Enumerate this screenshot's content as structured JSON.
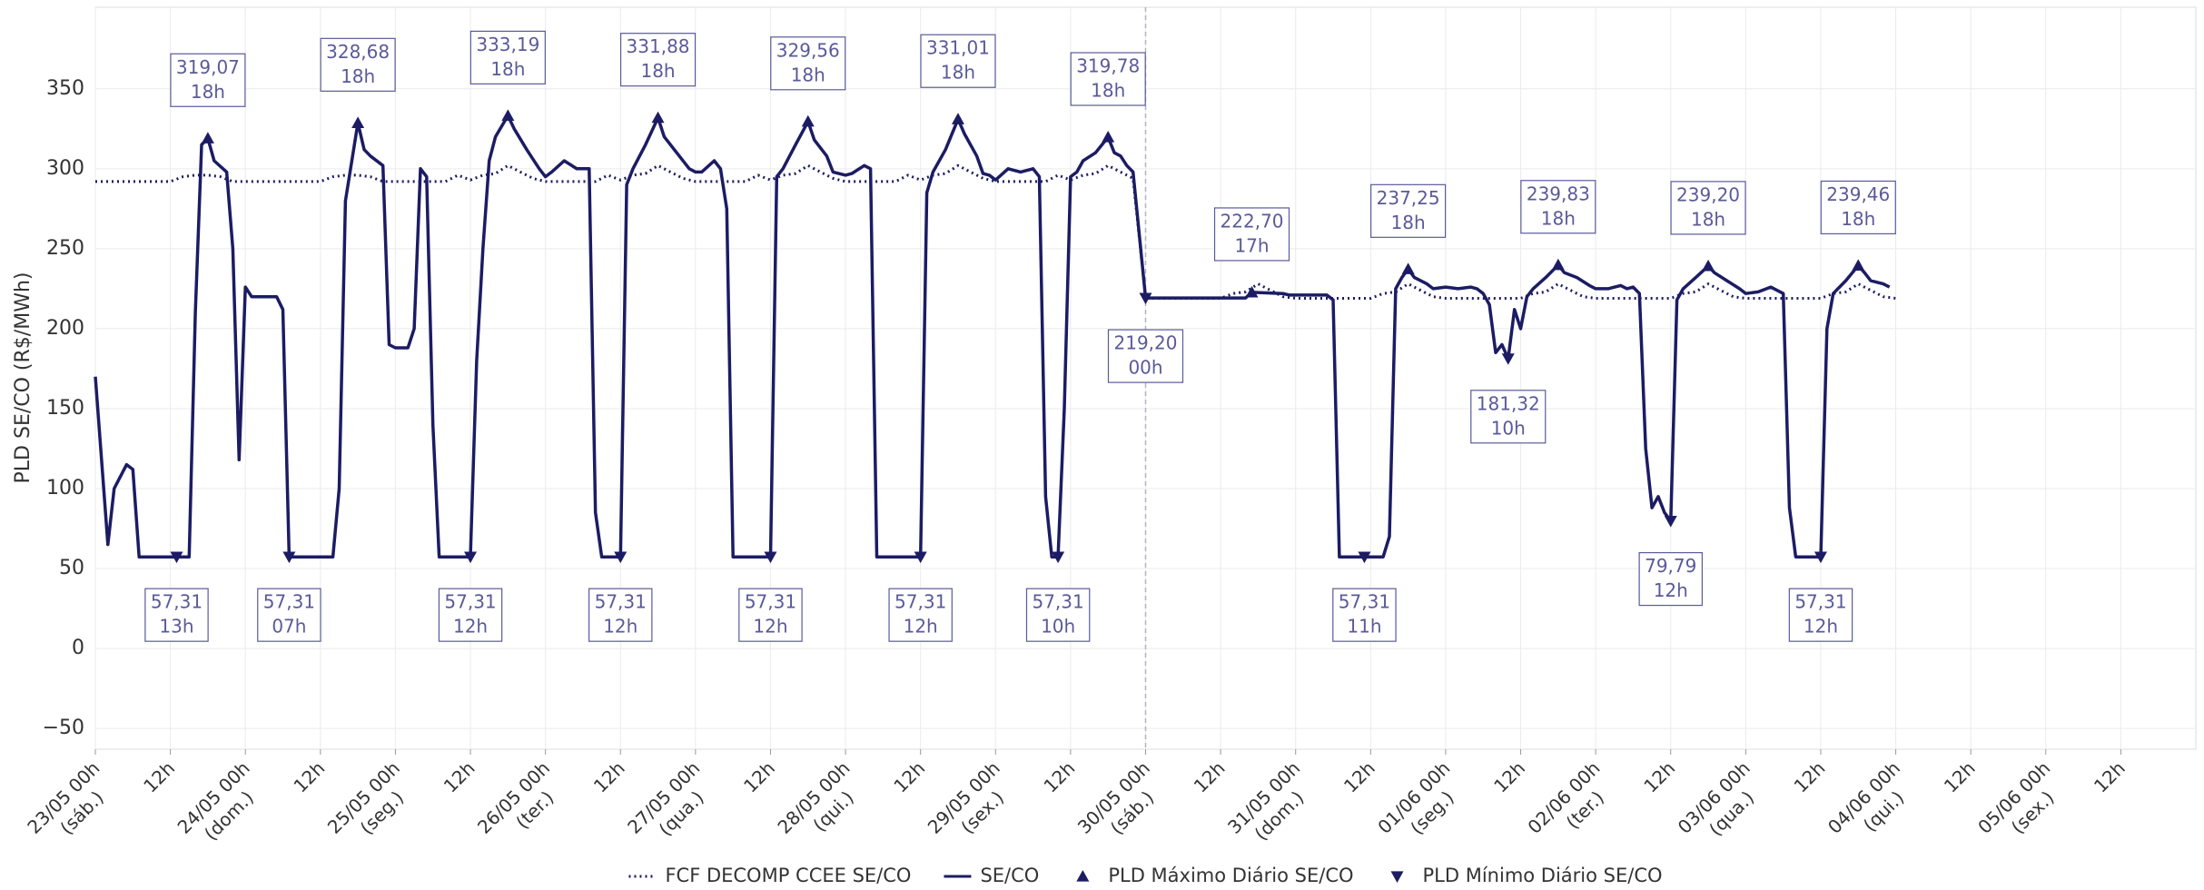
{
  "chart_data": {
    "type": "line",
    "ylabel": "PLD SE/CO (R$/MWh)",
    "xlim": [
      0,
      336
    ],
    "ylim": [
      -63,
      401
    ],
    "grid": true,
    "vline": 168,
    "yticks": [
      {
        "value": -50,
        "label": "−50"
      },
      0,
      50,
      100,
      150,
      200,
      250,
      300,
      350
    ],
    "xticks": [
      {
        "value": 0,
        "label": [
          "23/05 00h",
          "(sáb.)"
        ]
      },
      {
        "value": 12,
        "label": "12h"
      },
      {
        "value": 24,
        "label": [
          "24/05 00h",
          "(dom.)"
        ]
      },
      {
        "value": 36,
        "label": "12h"
      },
      {
        "value": 48,
        "label": [
          "25/05 00h",
          "(seg.)"
        ]
      },
      {
        "value": 60,
        "label": "12h"
      },
      {
        "value": 72,
        "label": [
          "26/05 00h",
          "(ter.)"
        ]
      },
      {
        "value": 84,
        "label": "12h"
      },
      {
        "value": 96,
        "label": [
          "27/05 00h",
          "(qua.)"
        ]
      },
      {
        "value": 108,
        "label": "12h"
      },
      {
        "value": 120,
        "label": [
          "28/05 00h",
          "(qui.)"
        ]
      },
      {
        "value": 132,
        "label": "12h"
      },
      {
        "value": 144,
        "label": [
          "29/05 00h",
          "(sex.)"
        ]
      },
      {
        "value": 156,
        "label": "12h"
      },
      {
        "value": 168,
        "label": [
          "30/05 00h",
          "(sáb.)"
        ]
      },
      {
        "value": 180,
        "label": "12h"
      },
      {
        "value": 192,
        "label": [
          "31/05 00h",
          "(dom.)"
        ]
      },
      {
        "value": 204,
        "label": "12h"
      },
      {
        "value": 216,
        "label": [
          "01/06 00h",
          "(seg.)"
        ]
      },
      {
        "value": 228,
        "label": "12h"
      },
      {
        "value": 240,
        "label": [
          "02/06 00h",
          "(ter.)"
        ]
      },
      {
        "value": 252,
        "label": "12h"
      },
      {
        "value": 264,
        "label": [
          "03/06 00h",
          "(qua.)"
        ]
      },
      {
        "value": 276,
        "label": "12h"
      },
      {
        "value": 288,
        "label": [
          "04/06 00h",
          "(qui.)"
        ]
      },
      {
        "value": 300,
        "label": "12h"
      },
      {
        "value": 312,
        "label": [
          "05/06 00h",
          "(sex.)"
        ]
      },
      {
        "value": 324,
        "label": "12h"
      }
    ],
    "series": [
      {
        "name": "FCF DECOMP CCEE SE/CO",
        "color": "#1c1c64",
        "style": "dotted",
        "x": [
          0,
          12,
          14,
          16,
          18,
          20,
          22,
          24,
          36,
          38,
          40,
          42,
          44,
          46,
          48,
          56,
          58,
          60,
          62,
          64,
          66,
          68,
          70,
          72,
          80,
          82,
          84,
          86,
          88,
          90,
          92,
          94,
          96,
          104,
          106,
          108,
          110,
          112,
          114,
          116,
          118,
          120,
          128,
          130,
          132,
          134,
          136,
          138,
          140,
          142,
          144,
          152,
          154,
          156,
          158,
          160,
          162,
          164,
          166,
          168,
          178,
          180,
          182,
          184,
          186,
          188,
          190,
          192,
          202,
          204,
          206,
          208,
          210,
          212,
          214,
          216,
          226,
          228,
          230,
          232,
          234,
          236,
          238,
          240,
          250,
          252,
          254,
          256,
          258,
          260,
          262,
          264,
          274,
          276,
          278,
          280,
          282,
          284,
          286,
          288
        ],
        "values": [
          292,
          292,
          295,
          296,
          296,
          295,
          292,
          292,
          292,
          295,
          296,
          296,
          295,
          292,
          292,
          292,
          296,
          293,
          296,
          297,
          302,
          298,
          294,
          292,
          292,
          296,
          293,
          296,
          297,
          302,
          298,
          294,
          292,
          292,
          296,
          293,
          296,
          297,
          302,
          298,
          294,
          292,
          292,
          296,
          293,
          296,
          297,
          302,
          298,
          294,
          292,
          292,
          296,
          293,
          296,
          297,
          302,
          298,
          294,
          219,
          219,
          219,
          222,
          223,
          228,
          224,
          220,
          219,
          219,
          219,
          222,
          223,
          228,
          224,
          220,
          219,
          219,
          219,
          222,
          223,
          228,
          224,
          220,
          219,
          219,
          219,
          222,
          223,
          228,
          224,
          220,
          219,
          219,
          219,
          222,
          223,
          228,
          224,
          220,
          219
        ]
      },
      {
        "name": "SE/CO",
        "color": "#1c1c64",
        "style": "solid",
        "x": [
          0,
          2,
          3,
          5,
          6,
          7,
          15,
          16,
          17,
          18,
          19,
          21,
          22,
          23,
          24,
          25,
          27,
          29,
          30,
          31,
          38,
          39,
          40,
          42,
          43,
          44,
          46,
          47,
          48,
          50,
          51,
          52,
          53,
          54,
          55,
          60,
          61,
          62,
          63,
          64,
          66,
          67,
          69,
          71,
          72,
          73,
          75,
          77,
          79,
          80,
          81,
          84,
          85,
          86,
          88,
          90,
          91,
          93,
          95,
          96,
          97,
          99,
          100,
          101,
          102,
          108,
          109,
          110,
          112,
          114,
          115,
          117,
          118,
          120,
          121,
          123,
          124,
          125,
          132,
          133,
          134,
          136,
          138,
          139,
          141,
          142,
          143,
          144,
          146,
          148,
          150,
          151,
          152,
          153,
          154,
          155,
          156,
          157,
          158,
          160,
          162,
          163,
          164,
          165,
          166,
          168,
          184,
          185,
          190,
          191,
          196,
          197,
          198,
          199,
          206,
          207,
          208,
          209,
          210,
          211,
          213,
          214,
          216,
          218,
          220,
          221,
          222,
          223,
          224,
          225,
          226,
          227,
          228,
          229,
          230,
          232,
          234,
          235,
          237,
          239,
          240,
          242,
          244,
          245,
          246,
          247,
          248,
          249,
          250,
          251,
          252,
          253,
          254,
          256,
          258,
          259,
          261,
          263,
          264,
          266,
          268,
          270,
          271,
          272,
          276,
          277,
          278,
          280,
          282,
          283,
          284,
          286,
          287
        ],
        "values": [
          170,
          65,
          100,
          115,
          112,
          57.31,
          57.31,
          210,
          315,
          319.07,
          305,
          298,
          250,
          118,
          226,
          220,
          220,
          220,
          212,
          57.31,
          57.31,
          100,
          280,
          328.68,
          312,
          308,
          302,
          190,
          188,
          188,
          200,
          300,
          295,
          140,
          57.31,
          57.31,
          180,
          250,
          305,
          320,
          333.19,
          325,
          312,
          300,
          295,
          298,
          305,
          300,
          300,
          85,
          57.31,
          57.31,
          290,
          300,
          315,
          331.88,
          320,
          310,
          300,
          298,
          298,
          305,
          300,
          275,
          57.31,
          57.31,
          295,
          300,
          315,
          329.56,
          318,
          308,
          298,
          296,
          297,
          302,
          300,
          57.31,
          57.31,
          285,
          298,
          312,
          331.01,
          322,
          308,
          297,
          296,
          293,
          300,
          298,
          300,
          295,
          95,
          57.31,
          57.31,
          150,
          295,
          298,
          305,
          310,
          319.78,
          310,
          308,
          302,
          298,
          219.2,
          219.2,
          222.7,
          222,
          221,
          221,
          221,
          218,
          57.31,
          57.31,
          70,
          225,
          232,
          237.25,
          232,
          228,
          225,
          226,
          225,
          226,
          225,
          222,
          215,
          185,
          190,
          181.32,
          212,
          200,
          220,
          225,
          232,
          239.83,
          235,
          232,
          227,
          225,
          225,
          227,
          225,
          226,
          222,
          125,
          88,
          95,
          85,
          79.79,
          218,
          225,
          232,
          239.2,
          235,
          230,
          225,
          222,
          223,
          226,
          222,
          88,
          57.31,
          57.31,
          200,
          222,
          230,
          239.46,
          235,
          230,
          228,
          226
        ]
      },
      {
        "name": "PLD Máximo Diário SE/CO",
        "color": "#1c1c64",
        "marker": "triangle-up",
        "x": [
          18,
          42,
          66,
          90,
          114,
          138,
          162,
          185,
          210,
          234,
          258,
          282
        ],
        "values": [
          319.07,
          328.68,
          333.19,
          331.88,
          329.56,
          331.01,
          319.78,
          222.7,
          237.25,
          239.83,
          239.2,
          239.46
        ],
        "value_labels": [
          "319,07",
          "328,68",
          "333,19",
          "331,88",
          "329,56",
          "331,01",
          "319,78",
          "222,70",
          "237,25",
          "239,83",
          "239,20",
          "239,46"
        ],
        "hour_labels": [
          "18h",
          "18h",
          "18h",
          "18h",
          "18h",
          "18h",
          "18h",
          "17h",
          "18h",
          "18h",
          "18h",
          "18h"
        ]
      },
      {
        "name": "PLD Mínimo Diário SE/CO",
        "color": "#1c1c64",
        "marker": "triangle-down",
        "x": [
          13,
          31,
          60,
          84,
          108,
          132,
          154,
          168,
          203,
          226,
          252,
          276
        ],
        "values": [
          57.31,
          57.31,
          57.31,
          57.31,
          57.31,
          57.31,
          57.31,
          219.2,
          57.31,
          181.32,
          79.79,
          57.31
        ],
        "value_labels": [
          "57,31",
          "57,31",
          "57,31",
          "57,31",
          "57,31",
          "57,31",
          "57,31",
          "219,20",
          "57,31",
          "181,32",
          "79,79",
          "57,31"
        ],
        "hour_labels": [
          "13h",
          "07h",
          "12h",
          "12h",
          "12h",
          "12h",
          "10h",
          "00h",
          "11h",
          "10h",
          "12h",
          "12h"
        ]
      }
    ]
  }
}
